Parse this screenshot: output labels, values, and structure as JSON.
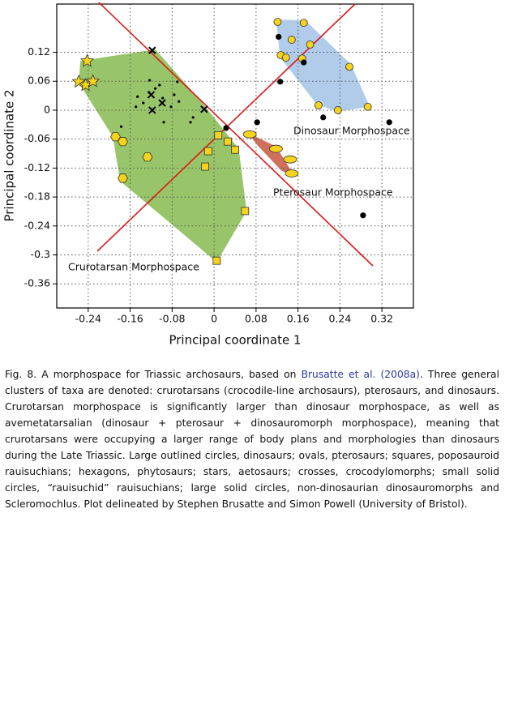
{
  "chart_data": {
    "type": "scatter",
    "xlabel": "Principal coordinate 1",
    "ylabel": "Principal coordinate 2",
    "xlim": [
      -0.3,
      0.38
    ],
    "ylim": [
      -0.41,
      0.22
    ],
    "xticks": [
      -0.24,
      -0.16,
      -0.08,
      0,
      0.08,
      0.16,
      0.24,
      0.32
    ],
    "yticks": [
      0.12,
      0.06,
      0,
      -0.06,
      -0.12,
      -0.18,
      -0.24,
      -0.3,
      -0.36
    ],
    "grid": true,
    "regions": [
      {
        "label": "Crurotarsan Morphospace",
        "color": "#8dbf5a",
        "points": [
          [
            -0.255,
            0.102
          ],
          [
            -0.112,
            0.126
          ],
          [
            -0.026,
            0.02
          ],
          [
            0.047,
            -0.08
          ],
          [
            0.062,
            -0.209
          ],
          [
            0.005,
            -0.315
          ],
          [
            -0.179,
            -0.147
          ],
          [
            -0.193,
            -0.055
          ],
          [
            -0.258,
            0.057
          ]
        ]
      },
      {
        "label": "Dinosaur Morphospace",
        "color": "#a9c7e8",
        "points": [
          [
            0.118,
            0.188
          ],
          [
            0.174,
            0.186
          ],
          [
            0.261,
            0.095
          ],
          [
            0.297,
            0.007
          ],
          [
            0.234,
            -0.003
          ],
          [
            0.196,
            0.012
          ],
          [
            0.126,
            0.109
          ]
        ]
      },
      {
        "label": "Pterosaur Morphospace",
        "color": "#c9604a",
        "points": [
          [
            0.064,
            -0.047
          ],
          [
            0.118,
            -0.075
          ],
          [
            0.152,
            -0.134
          ],
          [
            0.129,
            -0.126
          ],
          [
            0.082,
            -0.072
          ]
        ]
      }
    ],
    "series": [
      {
        "marker": "star",
        "color": "#f6d31c",
        "x": [
          -0.242,
          -0.258,
          -0.245,
          -0.231
        ],
        "values": [
          0.102,
          0.059,
          0.052,
          0.06
        ]
      },
      {
        "marker": "hexagon",
        "color": "#f6d31c",
        "x": [
          -0.188,
          -0.174,
          -0.127,
          -0.174
        ],
        "values": [
          -0.055,
          -0.065,
          -0.097,
          -0.141
        ]
      },
      {
        "marker": "square",
        "color": "#f6d31c",
        "x": [
          0.008,
          0.026,
          0.04,
          -0.011,
          -0.017,
          0.059,
          0.005
        ],
        "values": [
          -0.052,
          -0.065,
          -0.082,
          -0.085,
          -0.117,
          -0.209,
          -0.312
        ]
      },
      {
        "marker": "oval",
        "color": "#f6d31c",
        "x": [
          0.068,
          0.118,
          0.145,
          0.148
        ],
        "values": [
          -0.05,
          -0.08,
          -0.102,
          -0.131
        ]
      },
      {
        "marker": "circle",
        "color": "#f6d31c",
        "x": [
          0.121,
          0.171,
          0.148,
          0.183,
          0.127,
          0.137,
          0.168,
          0.258,
          0.199,
          0.236,
          0.293
        ],
        "values": [
          0.183,
          0.181,
          0.146,
          0.136,
          0.114,
          0.109,
          0.107,
          0.09,
          0.01,
          0,
          0.007
        ]
      },
      {
        "marker": "bigdot",
        "color": "#000000",
        "x": [
          0.123,
          0.171,
          0.126,
          0.082,
          0.023,
          0.208,
          0.334,
          0.284
        ],
        "values": [
          0.152,
          0.099,
          0.059,
          -0.025,
          -0.037,
          -0.015,
          -0.025,
          -0.218
        ]
      },
      {
        "marker": "cross",
        "color": "#000000",
        "x": [
          -0.12,
          -0.118,
          -0.099,
          -0.019,
          -0.118
        ],
        "values": [
          0.032,
          0,
          0.015,
          0.002,
          0.124
        ]
      },
      {
        "marker": "dot",
        "color": "#000000",
        "x": [
          -0.146,
          -0.135,
          -0.124,
          -0.123,
          -0.149,
          -0.112,
          -0.098,
          -0.076,
          -0.07,
          -0.067,
          -0.104,
          -0.096,
          -0.04,
          -0.045,
          -0.177,
          -0.082
        ],
        "values": [
          0.028,
          0.015,
          0.037,
          0.062,
          0.007,
          0.045,
          0.025,
          0.032,
          0.059,
          0.018,
          0.052,
          -0.025,
          -0.015,
          -0.025,
          -0.034,
          0.007
        ]
      }
    ]
  },
  "caption": {
    "text_1": "Fig. 8. A morphospace for Triassic archosaurs, based on ",
    "link": "Brusatte et al. (2008a)",
    "text_2": ". Three general clusters of taxa are denoted: crurotarsans (crocodile-line archosaurs), pterosaurs, and dinosaurs. Crurotarsan morphospace is significantly larger than dinosaur morphospace, as well as avemetatarsalian (dinosaur + pterosaur + dinosauromorph morphospace), meaning that crurotarsans were occupying a larger range of body plans and morphologies than dinosaurs during the Late Triassic. Large outlined circles, dinosaurs; ovals, pterosaurs; squares, poposauroid rauisuchians; hexagons, phytosaurs; stars, aetosaurs; crosses, crocodylomorphs; small solid circles, “rauisuchid” rauisuchians; large solid circles, non-dinosaurian dinosauromorphs and Scleromochlus. Plot delineated by Stephen Brusatte and Simon Powell (University of Bristol)."
  }
}
